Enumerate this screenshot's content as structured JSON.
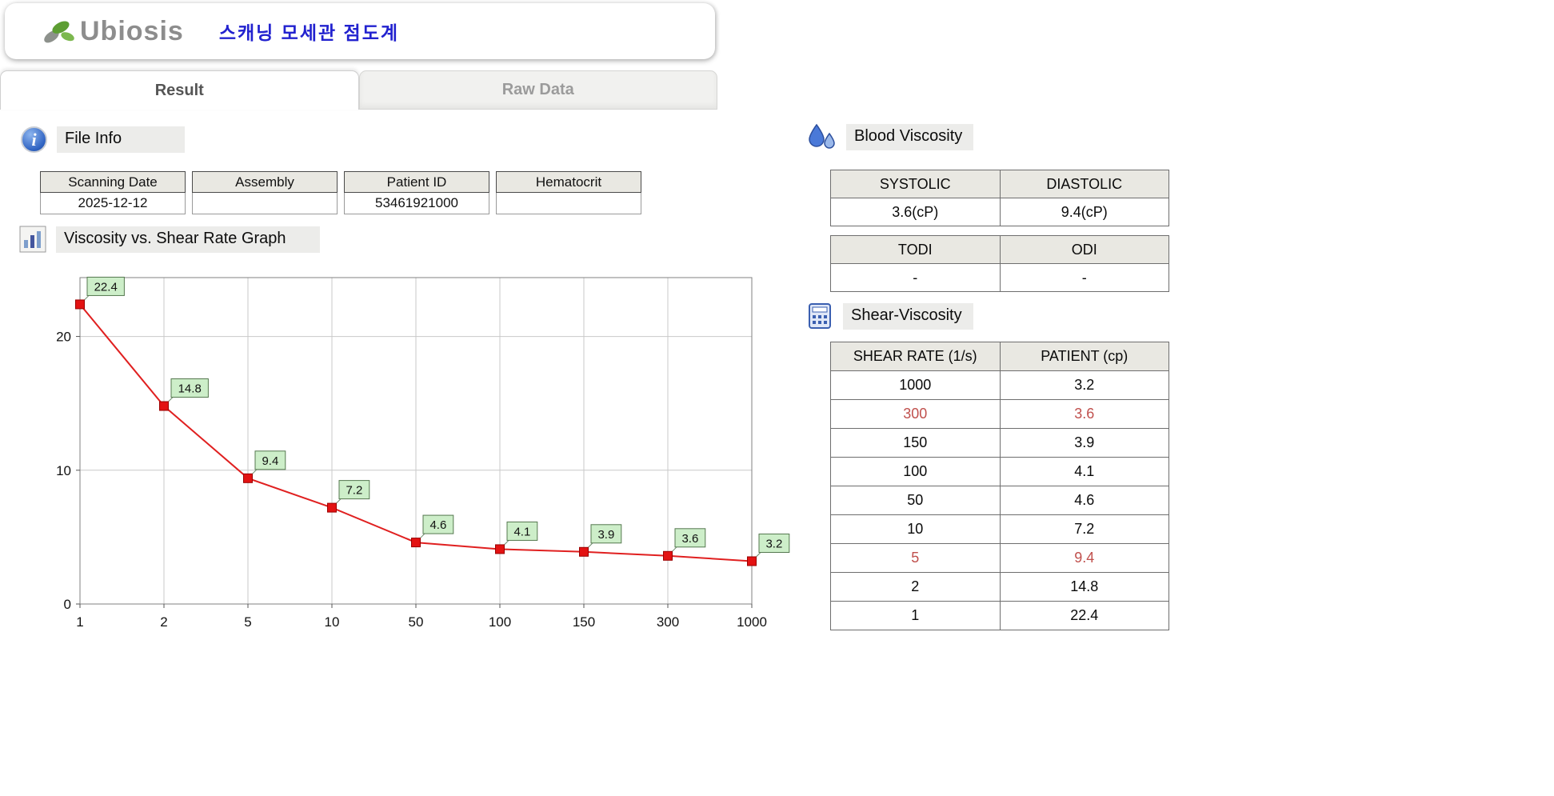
{
  "header": {
    "logo_text": "Ubiosis",
    "app_title": "스캐닝 모세관 점도계"
  },
  "tabs": [
    {
      "label": "Result",
      "active": true
    },
    {
      "label": "Raw Data",
      "active": false
    }
  ],
  "file_info": {
    "section_title": "File Info",
    "fields": [
      {
        "label": "Scanning Date",
        "value": "2025-12-12"
      },
      {
        "label": "Assembly",
        "value": ""
      },
      {
        "label": "Patient ID",
        "value": "53461921000"
      },
      {
        "label": "Hematocrit",
        "value": ""
      }
    ]
  },
  "graph_section": {
    "title": "Viscosity vs. Shear Rate Graph"
  },
  "chart_data": {
    "type": "line",
    "title": "Viscosity vs. Shear Rate Graph",
    "categories": [
      "1",
      "2",
      "5",
      "10",
      "50",
      "100",
      "150",
      "300",
      "1000"
    ],
    "values": [
      22.4,
      14.8,
      9.4,
      7.2,
      4.6,
      4.1,
      3.9,
      3.6,
      3.2
    ],
    "point_labels": [
      "22.4",
      "14.8",
      "9.4",
      "7.2",
      "4.6",
      "4.1",
      "3.9",
      "3.6",
      "3.2"
    ],
    "xlabel": "",
    "ylabel": "",
    "yticks": [
      0,
      10,
      20
    ],
    "ylim": [
      0,
      24.4
    ],
    "grid": true,
    "legend": "none",
    "line_color": "#e02020",
    "marker": "square",
    "marker_color": "#e31212",
    "label_bg": "#cdeec9"
  },
  "blood_viscosity": {
    "section_title": "Blood Viscosity",
    "table1": {
      "headers": [
        "SYSTOLIC",
        "DIASTOLIC"
      ],
      "values": [
        "3.6(cP)",
        "9.4(cP)"
      ]
    },
    "table2": {
      "headers": [
        "TODI",
        "ODI"
      ],
      "values": [
        "-",
        "-"
      ]
    }
  },
  "shear_viscosity": {
    "section_title": "Shear-Viscosity",
    "headers": [
      "SHEAR RATE (1/s)",
      "PATIENT (cp)"
    ],
    "rows": [
      {
        "shear": "1000",
        "patient": "3.2",
        "highlight": false
      },
      {
        "shear": "300",
        "patient": "3.6",
        "highlight": true
      },
      {
        "shear": "150",
        "patient": "3.9",
        "highlight": false
      },
      {
        "shear": "100",
        "patient": "4.1",
        "highlight": false
      },
      {
        "shear": "50",
        "patient": "4.6",
        "highlight": false
      },
      {
        "shear": "10",
        "patient": "7.2",
        "highlight": false
      },
      {
        "shear": "5",
        "patient": "9.4",
        "highlight": true
      },
      {
        "shear": "2",
        "patient": "14.8",
        "highlight": false
      },
      {
        "shear": "1",
        "patient": "22.4",
        "highlight": false
      }
    ]
  },
  "colors": {
    "accent_blue": "#2222cf",
    "highlight_red": "#c0504d",
    "line_red": "#e02020",
    "table_header_bg": "#e9e8e2",
    "label_green": "#cdeec9"
  }
}
